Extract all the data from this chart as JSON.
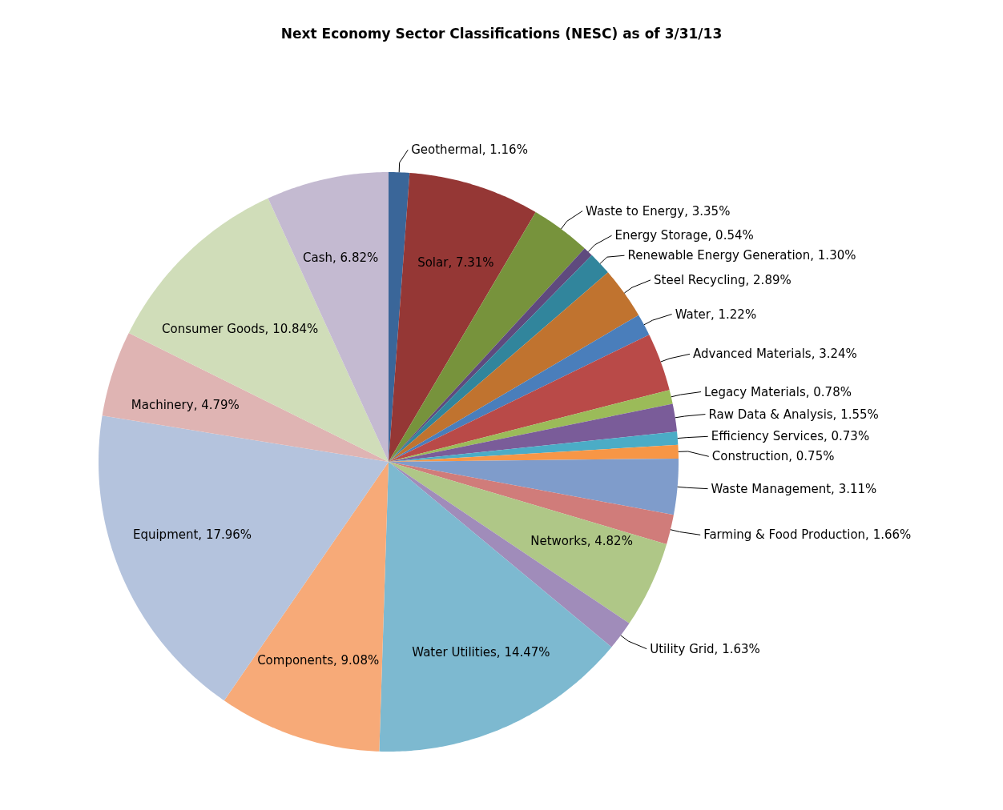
{
  "chart_data": {
    "type": "pie",
    "title": "Next Economy Sector Classifications (NESC) as of 3/31/13",
    "categories": [
      "Geothermal",
      "Solar",
      "Waste to Energy",
      "Energy Storage",
      "Renewable Energy Generation",
      "Steel Recycling",
      "Water",
      "Advanced Materials",
      "Legacy Materials",
      "Raw Data & Analysis",
      "Efficiency Services",
      "Construction",
      "Waste Management",
      "Farming & Food Production",
      "Networks",
      "Utility Grid",
      "Water Utilities",
      "Components",
      "Equipment",
      "Machinery",
      "Consumer Goods",
      "Cash"
    ],
    "values": [
      1.16,
      7.31,
      3.35,
      0.54,
      1.3,
      2.89,
      1.22,
      3.24,
      0.78,
      1.55,
      0.73,
      0.75,
      3.11,
      1.66,
      4.82,
      1.63,
      14.47,
      9.08,
      17.96,
      4.79,
      10.84,
      6.82
    ],
    "colors": [
      "#3a6699",
      "#953735",
      "#77933c",
      "#5f4a7e",
      "#31859c",
      "#c0732f",
      "#4a7ebb",
      "#b94a48",
      "#9bbb59",
      "#7a5c99",
      "#4bacc6",
      "#f79646",
      "#7f9ccb",
      "#d07c7a",
      "#afc787",
      "#a08cba",
      "#7db9d0",
      "#f7aa78",
      "#b4c3dd",
      "#dfb4b3",
      "#d0ddb9",
      "#c4bad1"
    ],
    "value_labels": [
      "1.16%",
      "7.31%",
      "3.35%",
      "0.54%",
      "1.30%",
      "2.89%",
      "1.22%",
      "3.24%",
      "0.78%",
      "1.55%",
      "0.73%",
      "0.75%",
      "3.11%",
      "1.66%",
      "4.82%",
      "1.63%",
      "14.47%",
      "9.08%",
      "17.96%",
      "4.79%",
      "10.84%",
      "6.82%"
    ]
  }
}
